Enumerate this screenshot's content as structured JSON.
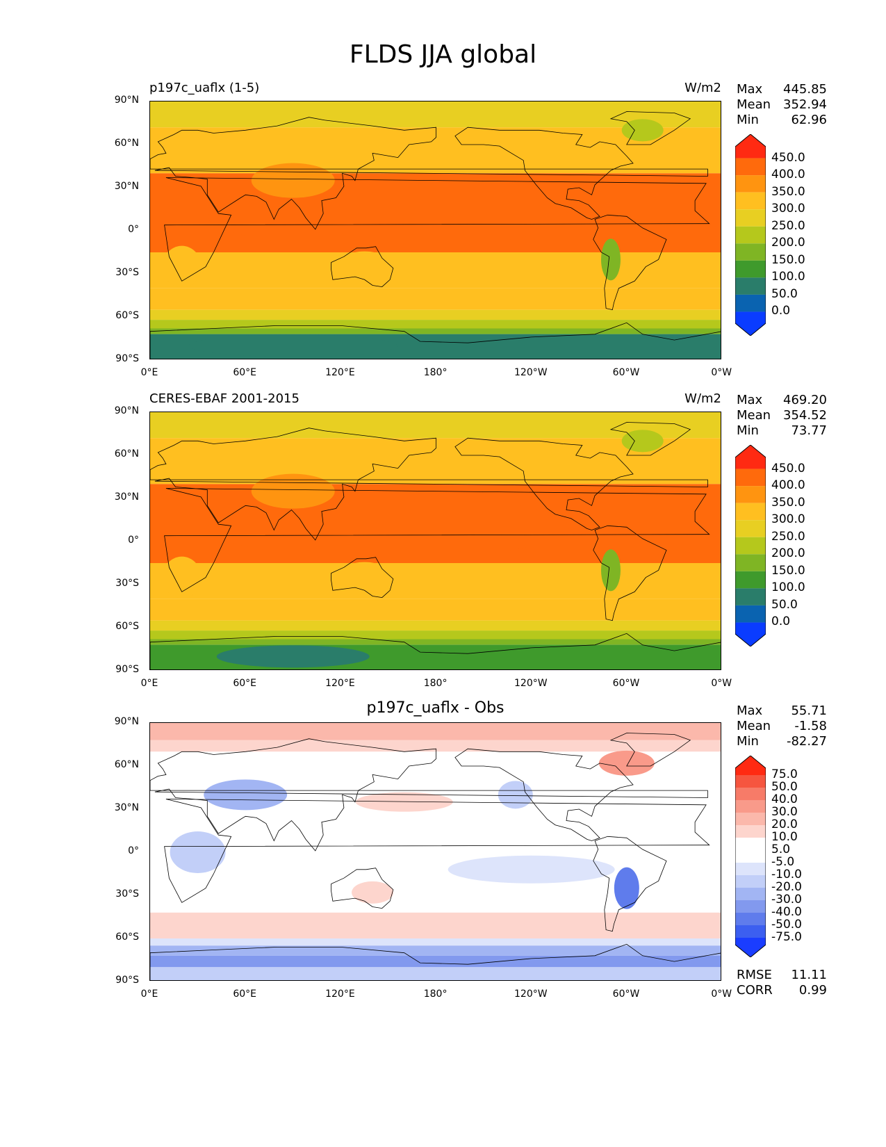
{
  "title": "FLDS JJA global",
  "y_ticks": [
    "90°N",
    "60°N",
    "30°N",
    "0°",
    "30°S",
    "60°S",
    "90°S"
  ],
  "x_ticks": [
    "0°E",
    "60°E",
    "120°E",
    "180°",
    "120°W",
    "60°W",
    "0°W"
  ],
  "panels": [
    {
      "left_title": "p197c_uaflx (1-5)",
      "right_title": "W/m2",
      "center_title": "",
      "stats": {
        "max_label": "Max",
        "max": "445.85",
        "mean_label": "Mean",
        "mean": "352.94",
        "min_label": "Min",
        "min": "62.96"
      },
      "colorbar": {
        "colors": [
          "#ff2a12",
          "#ff6a0c",
          "#ff9410",
          "#ffbf20",
          "#e8cf22",
          "#b5c81c",
          "#7fb524",
          "#3f9a2c",
          "#2a7d6a",
          "#0a63b0",
          "#0a3cff"
        ],
        "labels": [
          "450.0",
          "400.0",
          "350.0",
          "300.0",
          "250.0",
          "200.0",
          "150.0",
          "100.0",
          "50.0",
          "0.0"
        ]
      }
    },
    {
      "left_title": "CERES-EBAF 2001-2015",
      "right_title": "W/m2",
      "center_title": "",
      "stats": {
        "max_label": "Max",
        "max": "469.20",
        "mean_label": "Mean",
        "mean": "354.52",
        "min_label": "Min",
        "min": "73.77"
      },
      "colorbar": {
        "colors": [
          "#ff2a12",
          "#ff6a0c",
          "#ff9410",
          "#ffbf20",
          "#e8cf22",
          "#b5c81c",
          "#7fb524",
          "#3f9a2c",
          "#2a7d6a",
          "#0a63b0",
          "#0a3cff"
        ],
        "labels": [
          "450.0",
          "400.0",
          "350.0",
          "300.0",
          "250.0",
          "200.0",
          "150.0",
          "100.0",
          "50.0",
          "0.0"
        ]
      }
    },
    {
      "left_title": "",
      "right_title": "",
      "center_title": "p197c_uaflx - Obs",
      "stats": {
        "max_label": "Max",
        "max": "55.71",
        "mean_label": "Mean",
        "mean": "-1.58",
        "min_label": "Min",
        "min": "-82.27"
      },
      "colorbar": {
        "colors": [
          "#ff2a12",
          "#f6553f",
          "#f77b68",
          "#f99a8a",
          "#fbb8ab",
          "#fdd5cd",
          "#ffffff",
          "#ffffff",
          "#dde4fb",
          "#c2cff8",
          "#a2b5f3",
          "#8299ee",
          "#5f7cec",
          "#3c5ff0",
          "#1a3dff"
        ],
        "labels": [
          "75.0",
          "50.0",
          "40.0",
          "30.0",
          "20.0",
          "10.0",
          "5.0",
          "-5.0",
          "-10.0",
          "-20.0",
          "-30.0",
          "-40.0",
          "-50.0",
          "-75.0"
        ]
      },
      "rmse_label": "RMSE",
      "rmse": "11.11",
      "corr_label": "CORR",
      "corr": "0.99"
    }
  ]
}
